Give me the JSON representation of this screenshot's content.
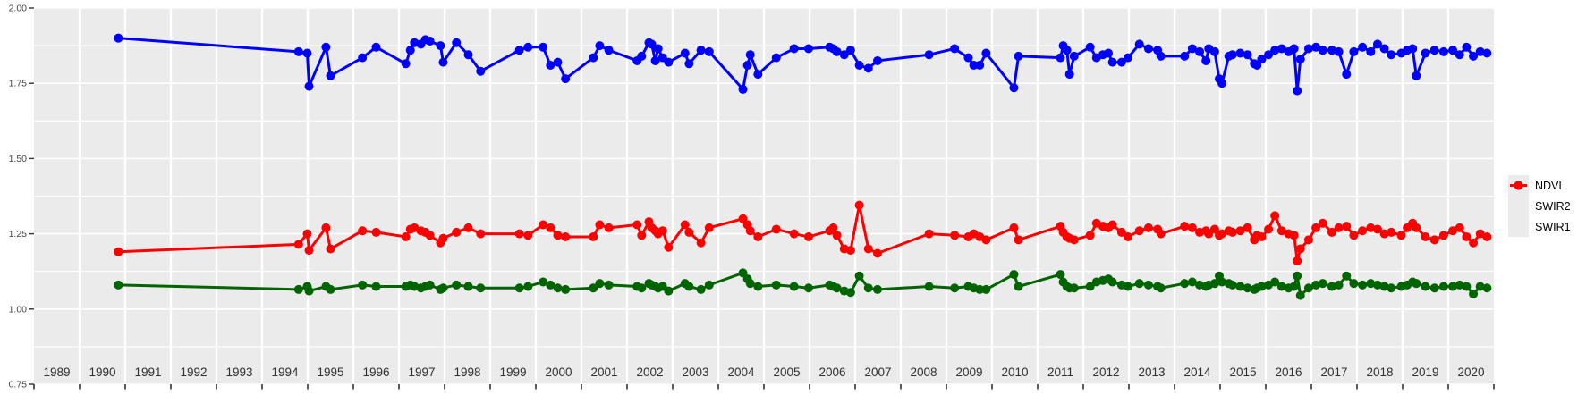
{
  "figure": {
    "description": "Time-series line chart of spectral indices (NDVI, SWIR2, SWIR1) from 1989 to 2020",
    "background_color": "#FFFFFF",
    "panel_color": "#EBEBEB",
    "gridline_color": "#FFFFFF",
    "axis_text_color": "#454545",
    "tick_color": "#333333"
  },
  "y_axis": {
    "tick_labels": [
      "0.75",
      "1.00",
      "1.25",
      "1.50",
      "1.75",
      "2.00"
    ],
    "tick_values": [
      0.75,
      1.0,
      1.25,
      1.5,
      1.75,
      2.0
    ],
    "minor_values": [
      0.875,
      1.125,
      1.375,
      1.625,
      1.875
    ]
  },
  "x_axis": {
    "year_labels": [
      "1989",
      "1990",
      "1991",
      "1992",
      "1993",
      "1994",
      "1995",
      "1996",
      "1997",
      "1998",
      "1999",
      "2000",
      "2001",
      "2002",
      "2003",
      "2004",
      "2005",
      "2006",
      "2007",
      "2008",
      "2009",
      "2010",
      "2011",
      "2012",
      "2013",
      "2014",
      "2015",
      "2016",
      "2017",
      "2018",
      "2019",
      "2020"
    ],
    "boundary_years": [
      1989,
      1990,
      1991,
      1992,
      1993,
      1994,
      1995,
      1996,
      1997,
      1998,
      1999,
      2000,
      2001,
      2002,
      2003,
      2004,
      2005,
      2006,
      2007,
      2008,
      2009,
      2010,
      2011,
      2012,
      2013,
      2014,
      2015,
      2016,
      2017,
      2018,
      2019,
      2020,
      2021
    ]
  },
  "legend": {
    "position": "right",
    "entries": [
      {
        "label": "NDVI",
        "color": "#0000FF"
      },
      {
        "label": "SWIR2",
        "color": "#006400"
      },
      {
        "label": "SWIR1",
        "color": "#FF0000"
      }
    ]
  },
  "chart_data": {
    "type": "line",
    "marker": "point",
    "xlim": [
      1989,
      2021
    ],
    "ylim": [
      0.75,
      2.0
    ],
    "grid": "white-on-gray (ggplot style), vertical gridlines at year boundaries",
    "legend_position": "right-outside",
    "x": [
      1990.85,
      1994.8,
      1994.99,
      1995.03,
      1995.4,
      1995.5,
      1996.2,
      1996.5,
      1997.15,
      1997.25,
      1997.34,
      1997.48,
      1997.58,
      1997.68,
      1997.91,
      1997.97,
      1998.26,
      1998.52,
      1998.79,
      1999.64,
      1999.83,
      2000.16,
      2000.32,
      2000.48,
      2000.65,
      2001.26,
      2001.4,
      2001.6,
      2002.22,
      2002.32,
      2002.48,
      2002.54,
      2002.62,
      2002.68,
      2002.78,
      2002.91,
      2003.27,
      2003.36,
      2003.62,
      2003.8,
      2004.54,
      2004.64,
      2004.7,
      2004.87,
      2005.27,
      2005.66,
      2005.98,
      2006.44,
      2006.52,
      2006.6,
      2006.76,
      2006.9,
      2007.09,
      2007.29,
      2007.49,
      2008.62,
      2009.18,
      2009.48,
      2009.6,
      2009.73,
      2009.87,
      2010.48,
      2010.58,
      2011.5,
      2011.56,
      2011.64,
      2011.7,
      2011.8,
      2012.15,
      2012.29,
      2012.43,
      2012.55,
      2012.64,
      2012.84,
      2012.98,
      2013.23,
      2013.43,
      2013.63,
      2013.7,
      2014.22,
      2014.39,
      2014.55,
      2014.69,
      2014.75,
      2014.88,
      2014.98,
      2015.04,
      2015.19,
      2015.27,
      2015.44,
      2015.6,
      2015.75,
      2015.81,
      2015.91,
      2016.06,
      2016.2,
      2016.35,
      2016.5,
      2016.62,
      2016.69,
      2016.76,
      2016.94,
      2017.1,
      2017.25,
      2017.45,
      2017.6,
      2017.77,
      2017.93,
      2018.12,
      2018.3,
      2018.45,
      2018.6,
      2018.75,
      2018.97,
      2019.1,
      2019.22,
      2019.3,
      2019.5,
      2019.7,
      2019.9,
      2020.1,
      2020.25,
      2020.4,
      2020.55,
      2020.7,
      2020.85
    ],
    "series": [
      {
        "name": "NDVI",
        "color": "#0000FF",
        "values": [
          1.9,
          1.855,
          1.85,
          1.74,
          1.87,
          1.775,
          1.835,
          1.87,
          1.815,
          1.86,
          1.885,
          1.88,
          1.895,
          1.89,
          1.875,
          1.82,
          1.885,
          1.845,
          1.79,
          1.86,
          1.87,
          1.87,
          1.81,
          1.82,
          1.765,
          1.835,
          1.875,
          1.86,
          1.825,
          1.84,
          1.885,
          1.88,
          1.825,
          1.865,
          1.835,
          1.82,
          1.85,
          1.815,
          1.86,
          1.855,
          1.73,
          1.81,
          1.845,
          1.78,
          1.835,
          1.865,
          1.865,
          1.87,
          1.865,
          1.855,
          1.845,
          1.86,
          1.81,
          1.8,
          1.825,
          1.845,
          1.865,
          1.835,
          1.81,
          1.81,
          1.85,
          1.735,
          1.84,
          1.835,
          1.875,
          1.86,
          1.78,
          1.84,
          1.87,
          1.835,
          1.845,
          1.85,
          1.82,
          1.82,
          1.835,
          1.88,
          1.865,
          1.86,
          1.84,
          1.84,
          1.865,
          1.855,
          1.825,
          1.865,
          1.855,
          1.765,
          1.75,
          1.84,
          1.845,
          1.85,
          1.845,
          1.815,
          1.81,
          1.83,
          1.845,
          1.86,
          1.865,
          1.855,
          1.865,
          1.725,
          1.83,
          1.865,
          1.87,
          1.86,
          1.86,
          1.855,
          1.78,
          1.855,
          1.87,
          1.855,
          1.88,
          1.865,
          1.845,
          1.85,
          1.86,
          1.865,
          1.775,
          1.85,
          1.86,
          1.855,
          1.86,
          1.845,
          1.87,
          1.84,
          1.855,
          1.85
        ]
      },
      {
        "name": "SWIR2",
        "color": "#006400",
        "values": [
          1.08,
          1.065,
          1.075,
          1.06,
          1.075,
          1.065,
          1.08,
          1.075,
          1.075,
          1.08,
          1.075,
          1.07,
          1.075,
          1.08,
          1.065,
          1.07,
          1.08,
          1.075,
          1.07,
          1.07,
          1.075,
          1.09,
          1.08,
          1.07,
          1.065,
          1.07,
          1.085,
          1.08,
          1.075,
          1.07,
          1.085,
          1.08,
          1.075,
          1.07,
          1.075,
          1.06,
          1.085,
          1.075,
          1.065,
          1.08,
          1.12,
          1.1,
          1.085,
          1.075,
          1.08,
          1.075,
          1.07,
          1.08,
          1.075,
          1.07,
          1.06,
          1.055,
          1.11,
          1.07,
          1.065,
          1.075,
          1.07,
          1.075,
          1.07,
          1.065,
          1.065,
          1.115,
          1.075,
          1.115,
          1.09,
          1.075,
          1.07,
          1.07,
          1.075,
          1.09,
          1.095,
          1.1,
          1.09,
          1.08,
          1.075,
          1.085,
          1.08,
          1.075,
          1.07,
          1.085,
          1.09,
          1.08,
          1.075,
          1.08,
          1.085,
          1.11,
          1.09,
          1.085,
          1.08,
          1.075,
          1.07,
          1.065,
          1.07,
          1.075,
          1.08,
          1.09,
          1.075,
          1.07,
          1.075,
          1.11,
          1.045,
          1.07,
          1.08,
          1.085,
          1.075,
          1.08,
          1.11,
          1.085,
          1.08,
          1.085,
          1.08,
          1.075,
          1.07,
          1.075,
          1.08,
          1.09,
          1.085,
          1.075,
          1.07,
          1.075,
          1.075,
          1.08,
          1.075,
          1.05,
          1.075,
          1.07
        ]
      },
      {
        "name": "SWIR1",
        "color": "#FF0000",
        "values": [
          1.19,
          1.215,
          1.25,
          1.195,
          1.27,
          1.2,
          1.26,
          1.255,
          1.24,
          1.265,
          1.27,
          1.26,
          1.255,
          1.245,
          1.22,
          1.235,
          1.255,
          1.27,
          1.25,
          1.25,
          1.245,
          1.28,
          1.27,
          1.245,
          1.24,
          1.24,
          1.28,
          1.27,
          1.28,
          1.245,
          1.29,
          1.27,
          1.26,
          1.25,
          1.26,
          1.205,
          1.28,
          1.255,
          1.22,
          1.27,
          1.3,
          1.28,
          1.26,
          1.24,
          1.265,
          1.25,
          1.24,
          1.26,
          1.27,
          1.245,
          1.2,
          1.195,
          1.345,
          1.2,
          1.185,
          1.25,
          1.245,
          1.24,
          1.25,
          1.24,
          1.23,
          1.27,
          1.23,
          1.275,
          1.255,
          1.24,
          1.235,
          1.23,
          1.245,
          1.285,
          1.275,
          1.27,
          1.28,
          1.255,
          1.24,
          1.26,
          1.27,
          1.265,
          1.25,
          1.275,
          1.27,
          1.255,
          1.26,
          1.25,
          1.265,
          1.245,
          1.25,
          1.26,
          1.255,
          1.26,
          1.27,
          1.23,
          1.245,
          1.24,
          1.265,
          1.31,
          1.26,
          1.25,
          1.245,
          1.16,
          1.2,
          1.23,
          1.27,
          1.285,
          1.255,
          1.27,
          1.275,
          1.245,
          1.26,
          1.27,
          1.265,
          1.25,
          1.255,
          1.245,
          1.27,
          1.285,
          1.27,
          1.24,
          1.23,
          1.245,
          1.26,
          1.27,
          1.24,
          1.22,
          1.25,
          1.24
        ]
      }
    ]
  }
}
